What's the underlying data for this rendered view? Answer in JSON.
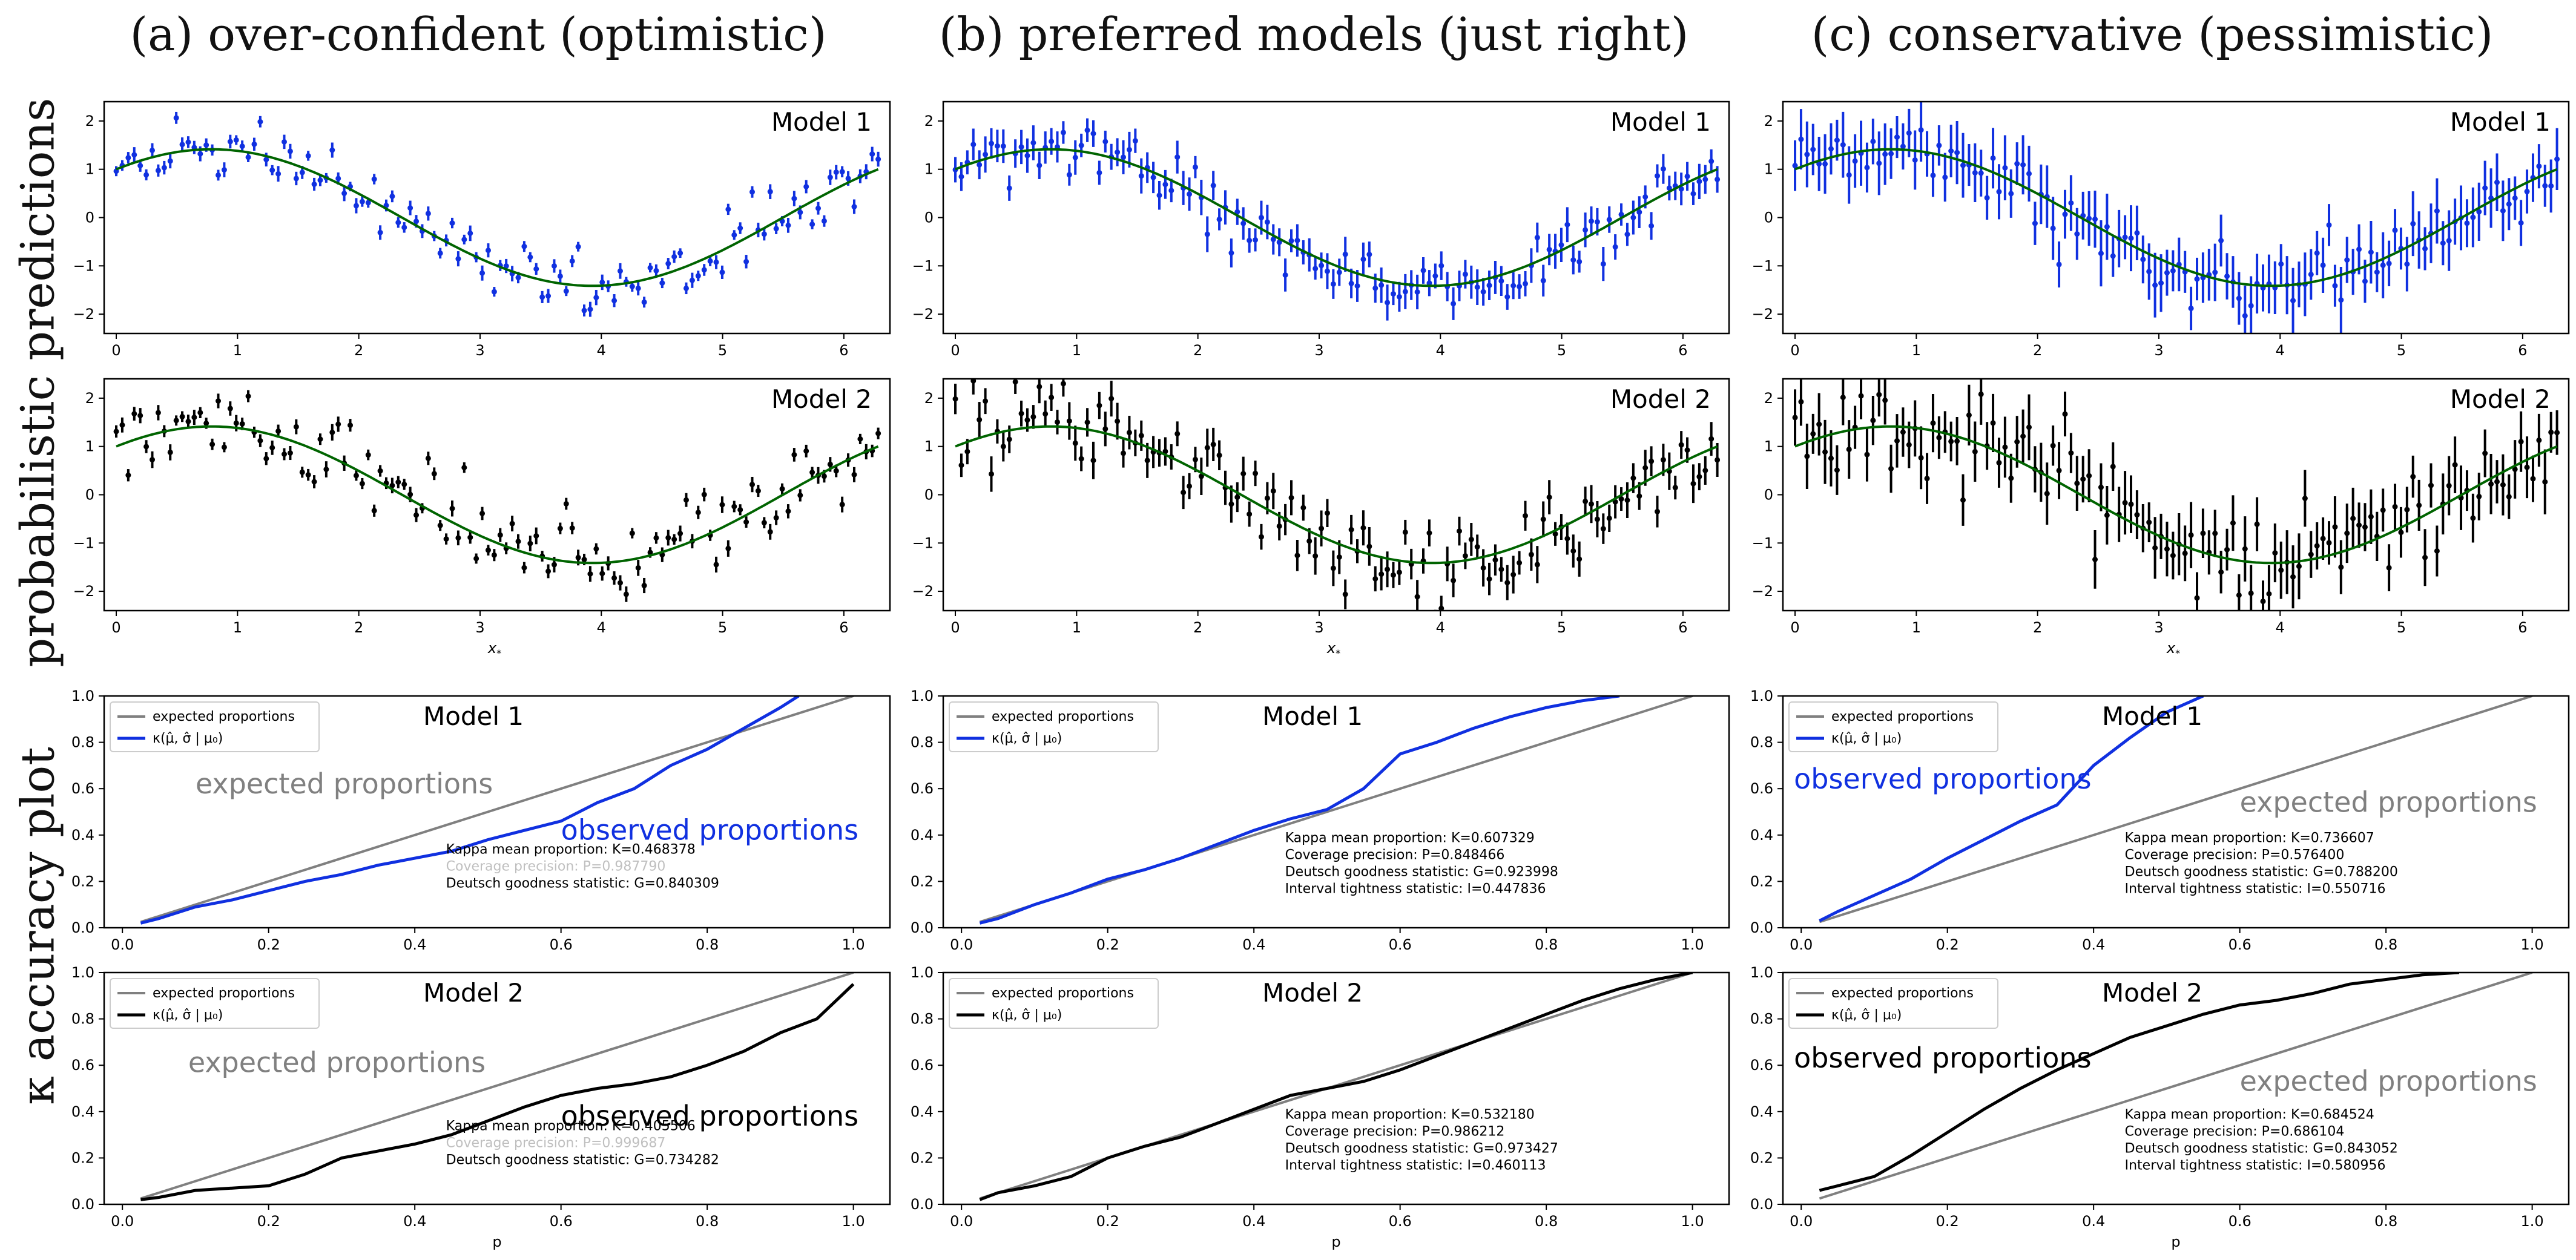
{
  "column_titles": [
    "(a) over-confident (optimistic)",
    "(b) preferred models (just right)",
    "(c) conservative (pessimistic)"
  ],
  "row_labels": {
    "predictions": "probabilistic predictions",
    "kappa": "κ accuracy plot"
  },
  "colors": {
    "model1": "#1030e0",
    "model2": "#000000",
    "truth": "#006400",
    "expected": "#808080",
    "faded_text": "#c0c0c0"
  },
  "chart_data": [
    {
      "type": "scatter",
      "panel": "predictions",
      "column": 0,
      "row": 0,
      "title": "Model 1",
      "xlabel": "",
      "ylabel": "",
      "xlim": [
        -0.1,
        6.38
      ],
      "ylim": [
        -2.4,
        2.4
      ],
      "xticks": [
        0,
        1,
        2,
        3,
        4,
        5,
        6
      ],
      "yticks": [
        -2,
        -1,
        0,
        1,
        2
      ],
      "truth_function": "sin(x)+cos(x)",
      "n_points": 128,
      "noise_scale": 0.3,
      "errorbar_halfwidth": 0.13,
      "seed": 11,
      "color": "#1030e0"
    },
    {
      "type": "scatter",
      "panel": "predictions",
      "column": 0,
      "row": 1,
      "title": "Model 2",
      "xlabel": "x*",
      "ylabel": "",
      "xlim": [
        -0.1,
        6.38
      ],
      "ylim": [
        -2.4,
        2.4
      ],
      "xticks": [
        0,
        1,
        2,
        3,
        4,
        5,
        6
      ],
      "yticks": [
        -2,
        -1,
        0,
        1,
        2
      ],
      "truth_function": "sin(x)+cos(x)",
      "n_points": 128,
      "noise_scale": 0.48,
      "errorbar_halfwidth": 0.14,
      "seed": 12,
      "color": "#000000"
    },
    {
      "type": "scatter",
      "panel": "predictions",
      "column": 1,
      "row": 0,
      "title": "Model 1",
      "xlabel": "",
      "ylabel": "",
      "xlim": [
        -0.1,
        6.38
      ],
      "ylim": [
        -2.4,
        2.4
      ],
      "xticks": [
        0,
        1,
        2,
        3,
        4,
        5,
        6
      ],
      "yticks": [
        -2,
        -1,
        0,
        1,
        2
      ],
      "truth_function": "sin(x)+cos(x)",
      "n_points": 128,
      "noise_scale": 0.3,
      "errorbar_halfwidth": 0.3,
      "seed": 21,
      "color": "#1030e0"
    },
    {
      "type": "scatter",
      "panel": "predictions",
      "column": 1,
      "row": 1,
      "title": "Model 2",
      "xlabel": "x*",
      "ylabel": "",
      "xlim": [
        -0.1,
        6.38
      ],
      "ylim": [
        -2.4,
        2.4
      ],
      "xticks": [
        0,
        1,
        2,
        3,
        4,
        5,
        6
      ],
      "yticks": [
        -2,
        -1,
        0,
        1,
        2
      ],
      "truth_function": "sin(x)+cos(x)",
      "n_points": 128,
      "noise_scale": 0.48,
      "errorbar_halfwidth": 0.32,
      "seed": 22,
      "color": "#000000"
    },
    {
      "type": "scatter",
      "panel": "predictions",
      "column": 2,
      "row": 0,
      "title": "Model 1",
      "xlabel": "",
      "ylabel": "",
      "xlim": [
        -0.1,
        6.38
      ],
      "ylim": [
        -2.4,
        2.4
      ],
      "xticks": [
        0,
        1,
        2,
        3,
        4,
        5,
        6
      ],
      "yticks": [
        -2,
        -1,
        0,
        1,
        2
      ],
      "truth_function": "sin(x)+cos(x)",
      "n_points": 128,
      "noise_scale": 0.3,
      "errorbar_halfwidth": 0.55,
      "seed": 31,
      "color": "#1030e0"
    },
    {
      "type": "scatter",
      "panel": "predictions",
      "column": 2,
      "row": 1,
      "title": "Model 2",
      "xlabel": "x*",
      "ylabel": "",
      "xlim": [
        -0.1,
        6.38
      ],
      "ylim": [
        -2.4,
        2.4
      ],
      "xticks": [
        0,
        1,
        2,
        3,
        4,
        5,
        6
      ],
      "yticks": [
        -2,
        -1,
        0,
        1,
        2
      ],
      "truth_function": "sin(x)+cos(x)",
      "n_points": 128,
      "noise_scale": 0.48,
      "errorbar_halfwidth": 0.55,
      "seed": 32,
      "color": "#000000"
    },
    {
      "type": "line",
      "panel": "kappa",
      "column": 0,
      "row": 0,
      "title": "Model 1",
      "xlabel": "",
      "ylabel": "",
      "xlim": [
        -0.025,
        1.05
      ],
      "ylim": [
        0,
        1
      ],
      "xticks": [
        0,
        0.2,
        0.4,
        0.6,
        0.8,
        1.0
      ],
      "yticks": [
        0,
        0.2,
        0.4,
        0.6,
        0.8,
        1.0
      ],
      "legend": [
        "expected proportions",
        "κ(μ̂, σ̂ | μ₀)"
      ],
      "legend_position": "top-left",
      "series": [
        {
          "name": "expected proportions",
          "x": [
            0.025,
            1.0
          ],
          "y": [
            0.025,
            1.0
          ],
          "color": "#808080"
        },
        {
          "name": "κ(μ̂, σ̂ | μ₀)",
          "color": "#1030e0",
          "x": [
            0.025,
            0.05,
            0.1,
            0.15,
            0.2,
            0.25,
            0.3,
            0.35,
            0.4,
            0.45,
            0.5,
            0.55,
            0.6,
            0.65,
            0.7,
            0.75,
            0.8,
            0.85,
            0.9,
            0.925
          ],
          "y": [
            0.02,
            0.04,
            0.09,
            0.12,
            0.16,
            0.2,
            0.23,
            0.27,
            0.3,
            0.33,
            0.38,
            0.42,
            0.46,
            0.54,
            0.6,
            0.7,
            0.77,
            0.86,
            0.95,
            1.0
          ]
        }
      ],
      "annotations": [
        {
          "text": "expected proportions",
          "x": 0.1,
          "y": 0.58,
          "size": 46,
          "color": "#808080"
        },
        {
          "text": "observed proportions",
          "x": 0.6,
          "y": 0.38,
          "size": 46,
          "color": "#1030e0"
        }
      ],
      "stats": [
        {
          "text": "Kappa mean proportion: K=0.468378",
          "color": "#000000"
        },
        {
          "text": "Coverage precision: P=0.987790",
          "color": "#c0c0c0"
        },
        {
          "text": "Deutsch goodness statistic: G=0.840309",
          "color": "#000000"
        }
      ]
    },
    {
      "type": "line",
      "panel": "kappa",
      "column": 0,
      "row": 1,
      "title": "Model 2",
      "xlabel": "p",
      "ylabel": "",
      "xlim": [
        -0.025,
        1.05
      ],
      "ylim": [
        0,
        1
      ],
      "xticks": [
        0,
        0.2,
        0.4,
        0.6,
        0.8,
        1.0
      ],
      "yticks": [
        0,
        0.2,
        0.4,
        0.6,
        0.8,
        1.0
      ],
      "legend": [
        "expected proportions",
        "κ(μ̂, σ̂ | μ₀)"
      ],
      "legend_position": "top-left",
      "series": [
        {
          "name": "expected proportions",
          "x": [
            0.025,
            1.0
          ],
          "y": [
            0.025,
            1.0
          ],
          "color": "#808080"
        },
        {
          "name": "κ(μ̂, σ̂ | μ₀)",
          "color": "#000000",
          "x": [
            0.025,
            0.05,
            0.1,
            0.15,
            0.2,
            0.25,
            0.3,
            0.35,
            0.4,
            0.45,
            0.5,
            0.55,
            0.6,
            0.65,
            0.7,
            0.75,
            0.8,
            0.85,
            0.9,
            0.95,
            1.0
          ],
          "y": [
            0.02,
            0.03,
            0.06,
            0.07,
            0.08,
            0.13,
            0.2,
            0.23,
            0.26,
            0.3,
            0.36,
            0.42,
            0.47,
            0.5,
            0.52,
            0.55,
            0.6,
            0.66,
            0.74,
            0.8,
            0.95
          ]
        }
      ],
      "annotations": [
        {
          "text": "expected proportions",
          "x": 0.09,
          "y": 0.57,
          "size": 46,
          "color": "#808080"
        },
        {
          "text": "observed proportions",
          "x": 0.6,
          "y": 0.34,
          "size": 46,
          "color": "#000000"
        }
      ],
      "stats": [
        {
          "text": "Kappa mean proportion: K=0.405506",
          "color": "#000000"
        },
        {
          "text": "Coverage precision: P=0.999687",
          "color": "#c0c0c0"
        },
        {
          "text": "Deutsch goodness statistic: G=0.734282",
          "color": "#000000"
        }
      ]
    },
    {
      "type": "line",
      "panel": "kappa",
      "column": 1,
      "row": 0,
      "title": "Model 1",
      "xlabel": "",
      "ylabel": "",
      "xlim": [
        -0.025,
        1.05
      ],
      "ylim": [
        0,
        1
      ],
      "xticks": [
        0,
        0.2,
        0.4,
        0.6,
        0.8,
        1.0
      ],
      "yticks": [
        0,
        0.2,
        0.4,
        0.6,
        0.8,
        1.0
      ],
      "legend": [
        "expected proportions",
        "κ(μ̂, σ̂ | μ₀)"
      ],
      "legend_position": "top-left",
      "series": [
        {
          "name": "expected proportions",
          "x": [
            0.025,
            1.0
          ],
          "y": [
            0.025,
            1.0
          ],
          "color": "#808080"
        },
        {
          "name": "κ(μ̂, σ̂ | μ₀)",
          "color": "#1030e0",
          "x": [
            0.025,
            0.05,
            0.1,
            0.15,
            0.2,
            0.25,
            0.3,
            0.35,
            0.4,
            0.45,
            0.5,
            0.55,
            0.6,
            0.65,
            0.7,
            0.75,
            0.8,
            0.85,
            0.9
          ],
          "y": [
            0.02,
            0.04,
            0.1,
            0.15,
            0.21,
            0.25,
            0.3,
            0.36,
            0.42,
            0.47,
            0.51,
            0.6,
            0.75,
            0.8,
            0.86,
            0.91,
            0.95,
            0.98,
            1.0
          ]
        }
      ],
      "annotations": [],
      "stats": [
        {
          "text": "Kappa mean proportion: K=0.607329",
          "color": "#000000"
        },
        {
          "text": "Coverage precision: P=0.848466",
          "color": "#000000"
        },
        {
          "text": "Deutsch goodness statistic: G=0.923998",
          "color": "#000000"
        },
        {
          "text": "Interval tightness statistic: I=0.447836",
          "color": "#000000"
        }
      ]
    },
    {
      "type": "line",
      "panel": "kappa",
      "column": 1,
      "row": 1,
      "title": "Model 2",
      "xlabel": "p",
      "ylabel": "",
      "xlim": [
        -0.025,
        1.05
      ],
      "ylim": [
        0,
        1
      ],
      "xticks": [
        0,
        0.2,
        0.4,
        0.6,
        0.8,
        1.0
      ],
      "yticks": [
        0,
        0.2,
        0.4,
        0.6,
        0.8,
        1.0
      ],
      "legend": [
        "expected proportions",
        "κ(μ̂, σ̂ | μ₀)"
      ],
      "legend_position": "top-left",
      "series": [
        {
          "name": "expected proportions",
          "x": [
            0.025,
            1.0
          ],
          "y": [
            0.025,
            1.0
          ],
          "color": "#808080"
        },
        {
          "name": "κ(μ̂, σ̂ | μ₀)",
          "color": "#000000",
          "x": [
            0.025,
            0.05,
            0.1,
            0.15,
            0.2,
            0.25,
            0.3,
            0.35,
            0.4,
            0.45,
            0.5,
            0.55,
            0.6,
            0.65,
            0.7,
            0.75,
            0.8,
            0.85,
            0.9,
            0.95,
            1.0
          ],
          "y": [
            0.02,
            0.05,
            0.08,
            0.12,
            0.2,
            0.25,
            0.29,
            0.35,
            0.41,
            0.47,
            0.5,
            0.53,
            0.58,
            0.64,
            0.7,
            0.76,
            0.82,
            0.88,
            0.93,
            0.97,
            1.0
          ]
        }
      ],
      "annotations": [],
      "stats": [
        {
          "text": "Kappa mean proportion: K=0.532180",
          "color": "#000000"
        },
        {
          "text": "Coverage precision: P=0.986212",
          "color": "#000000"
        },
        {
          "text": "Deutsch goodness statistic: G=0.973427",
          "color": "#000000"
        },
        {
          "text": "Interval tightness statistic: I=0.460113",
          "color": "#000000"
        }
      ]
    },
    {
      "type": "line",
      "panel": "kappa",
      "column": 2,
      "row": 0,
      "title": "Model 1",
      "xlabel": "",
      "ylabel": "",
      "xlim": [
        -0.025,
        1.05
      ],
      "ylim": [
        0,
        1
      ],
      "xticks": [
        0,
        0.2,
        0.4,
        0.6,
        0.8,
        1.0
      ],
      "yticks": [
        0,
        0.2,
        0.4,
        0.6,
        0.8,
        1.0
      ],
      "legend": [
        "expected proportions",
        "κ(μ̂, σ̂ | μ₀)"
      ],
      "legend_position": "top-left",
      "series": [
        {
          "name": "expected proportions",
          "x": [
            0.025,
            1.0
          ],
          "y": [
            0.025,
            1.0
          ],
          "color": "#808080"
        },
        {
          "name": "κ(μ̂, σ̂ | μ₀)",
          "color": "#1030e0",
          "x": [
            0.025,
            0.05,
            0.1,
            0.15,
            0.2,
            0.25,
            0.3,
            0.35,
            0.4,
            0.45,
            0.5,
            0.55
          ],
          "y": [
            0.03,
            0.07,
            0.14,
            0.21,
            0.3,
            0.38,
            0.46,
            0.53,
            0.7,
            0.82,
            0.93,
            1.0
          ]
        }
      ],
      "annotations": [
        {
          "text": "observed proportions",
          "x": -0.01,
          "y": 0.6,
          "size": 46,
          "color": "#1030e0"
        },
        {
          "text": "expected proportions",
          "x": 0.6,
          "y": 0.5,
          "size": 46,
          "color": "#808080"
        }
      ],
      "stats": [
        {
          "text": "Kappa mean proportion: K=0.736607",
          "color": "#000000"
        },
        {
          "text": "Coverage precision: P=0.576400",
          "color": "#000000"
        },
        {
          "text": "Deutsch goodness statistic: G=0.788200",
          "color": "#000000"
        },
        {
          "text": "Interval tightness statistic: I=0.550716",
          "color": "#000000"
        }
      ]
    },
    {
      "type": "line",
      "panel": "kappa",
      "column": 2,
      "row": 1,
      "title": "Model 2",
      "xlabel": "p",
      "ylabel": "",
      "xlim": [
        -0.025,
        1.05
      ],
      "ylim": [
        0,
        1
      ],
      "xticks": [
        0,
        0.2,
        0.4,
        0.6,
        0.8,
        1.0
      ],
      "yticks": [
        0,
        0.2,
        0.4,
        0.6,
        0.8,
        1.0
      ],
      "legend": [
        "expected proportions",
        "κ(μ̂, σ̂ | μ₀)"
      ],
      "legend_position": "top-left",
      "series": [
        {
          "name": "expected proportions",
          "x": [
            0.025,
            1.0
          ],
          "y": [
            0.025,
            1.0
          ],
          "color": "#808080"
        },
        {
          "name": "κ(μ̂, σ̂ | μ₀)",
          "color": "#000000",
          "x": [
            0.025,
            0.05,
            0.1,
            0.15,
            0.2,
            0.25,
            0.3,
            0.35,
            0.4,
            0.45,
            0.5,
            0.55,
            0.6,
            0.65,
            0.7,
            0.75,
            0.8,
            0.85,
            0.9
          ],
          "y": [
            0.06,
            0.08,
            0.12,
            0.21,
            0.31,
            0.41,
            0.5,
            0.58,
            0.65,
            0.72,
            0.77,
            0.82,
            0.86,
            0.88,
            0.91,
            0.95,
            0.97,
            0.99,
            1.0
          ]
        }
      ],
      "annotations": [
        {
          "text": "observed proportions",
          "x": -0.01,
          "y": 0.59,
          "size": 46,
          "color": "#000000"
        },
        {
          "text": "expected proportions",
          "x": 0.6,
          "y": 0.49,
          "size": 46,
          "color": "#808080"
        }
      ],
      "stats": [
        {
          "text": "Kappa mean proportion: K=0.684524",
          "color": "#000000"
        },
        {
          "text": "Coverage precision: P=0.686104",
          "color": "#000000"
        },
        {
          "text": "Deutsch goodness statistic: G=0.843052",
          "color": "#000000"
        },
        {
          "text": "Interval tightness statistic: I=0.580956",
          "color": "#000000"
        }
      ]
    }
  ]
}
